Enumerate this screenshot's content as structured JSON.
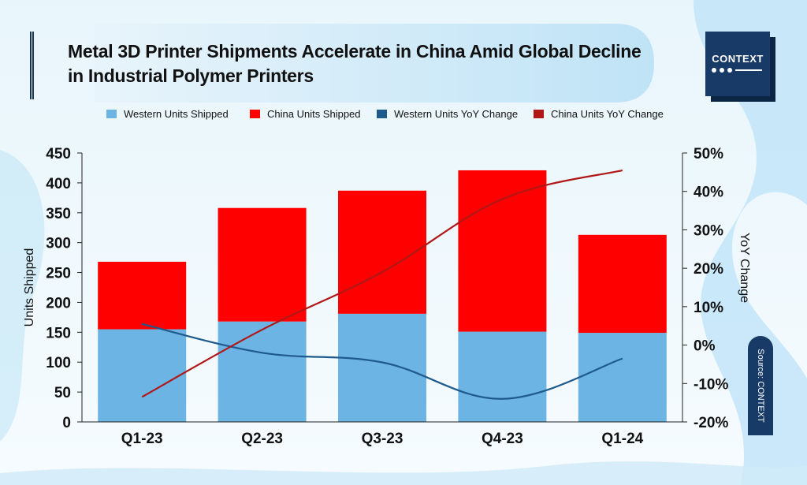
{
  "title": "Metal 3D Printer Shipments Accelerate in China Amid Global Decline in Industrial Polymer Printers",
  "logo": {
    "text": "CONTEXT"
  },
  "source": "Source:  CONTEXT",
  "colors": {
    "western_bar": "#6cb4e4",
    "china_bar": "#ff0000",
    "western_line": "#1f5a8c",
    "china_line": "#b01818",
    "brand": "#173a66"
  },
  "legend": [
    {
      "label": "Western Units Shipped",
      "color": "#6cb4e4",
      "kind": "bar"
    },
    {
      "label": "China Units Shipped",
      "color": "#ff0000",
      "kind": "bar"
    },
    {
      "label": "Western Units YoY Change",
      "color": "#1f5a8c",
      "kind": "line"
    },
    {
      "label": "China Units YoY Change",
      "color": "#b01818",
      "kind": "line"
    }
  ],
  "chart_data": {
    "type": "bar",
    "stacked": true,
    "categories": [
      "Q1-23",
      "Q2-23",
      "Q3-23",
      "Q4-23",
      "Q1-24"
    ],
    "series": [
      {
        "name": "Western Units Shipped",
        "axis": "left",
        "kind": "bar",
        "values": [
          155,
          168,
          181,
          151,
          149
        ]
      },
      {
        "name": "China Units Shipped",
        "axis": "left",
        "kind": "bar",
        "values": [
          113,
          190,
          206,
          270,
          164
        ]
      },
      {
        "name": "Western Units YoY Change",
        "axis": "right",
        "kind": "line",
        "values": [
          5.5,
          -2,
          -4.5,
          -14,
          -3.5
        ]
      },
      {
        "name": "China Units YoY Change",
        "axis": "right",
        "kind": "line",
        "values": [
          -13.5,
          4,
          19,
          38,
          45.5
        ]
      }
    ],
    "ylabel": "Units Shipped",
    "ylabel_right": "YoY Change",
    "ylim": [
      0,
      450
    ],
    "yticks": [
      "0",
      "50",
      "100",
      "150",
      "200",
      "250",
      "300",
      "350",
      "400",
      "450"
    ],
    "ylim_right": [
      -20,
      50
    ],
    "yticks_right": [
      "-20%",
      "-10%",
      "0%",
      "10%",
      "20%",
      "30%",
      "40%",
      "50%"
    ],
    "grid": false,
    "legend_position": "top"
  }
}
